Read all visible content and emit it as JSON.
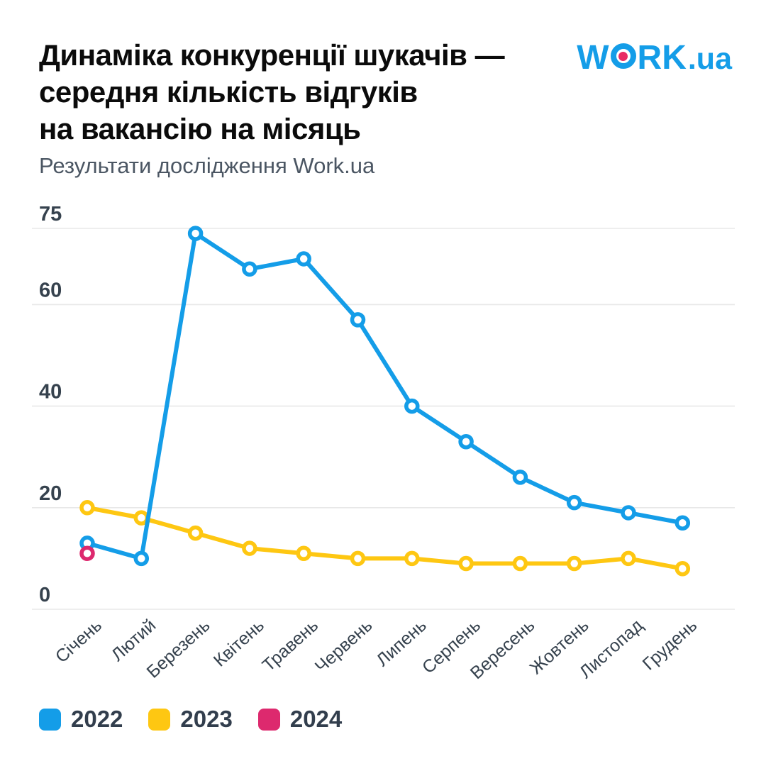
{
  "header": {
    "title_lines": [
      "Динаміка конкуренції шукачів —",
      "середня кількість відгуків",
      "на вакансію на місяць"
    ],
    "subtitle": "Результати дослідження Work.ua"
  },
  "logo": {
    "part1": "W",
    "part2": "RK",
    "part3": ".ua",
    "color": "#149de8",
    "dot_color": "#e82c64"
  },
  "chart_data": {
    "type": "line",
    "title": "Динаміка конкуренції шукачів — середня кількість відгуків на вакансію на місяць",
    "subtitle": "Результати дослідження Work.ua",
    "categories": [
      "Січень",
      "Лютий",
      "Березень",
      "Квітень",
      "Травень",
      "Червень",
      "Липень",
      "Серпень",
      "Вересень",
      "Жовтень",
      "Листопад",
      "Грудень"
    ],
    "y_ticks": [
      0,
      20,
      40,
      60,
      75
    ],
    "ylim": [
      0,
      75
    ],
    "xlabel": "",
    "ylabel": "",
    "grid": true,
    "grid_color": "#e8e8e8",
    "legend_position": "bottom-left",
    "series": [
      {
        "name": "2022",
        "color": "#149de8",
        "values": [
          13,
          10,
          74,
          67,
          69,
          57,
          40,
          33,
          26,
          21,
          19,
          17
        ]
      },
      {
        "name": "2023",
        "color": "#fec712",
        "values": [
          20,
          18,
          15,
          12,
          11,
          10,
          10,
          9,
          9,
          9,
          10,
          8
        ]
      },
      {
        "name": "2024",
        "color": "#dd296e",
        "values": [
          11
        ]
      }
    ]
  },
  "legend": {
    "items": [
      {
        "label": "2022",
        "color": "#149de8"
      },
      {
        "label": "2023",
        "color": "#fec712"
      },
      {
        "label": "2024",
        "color": "#dd296e"
      }
    ]
  }
}
